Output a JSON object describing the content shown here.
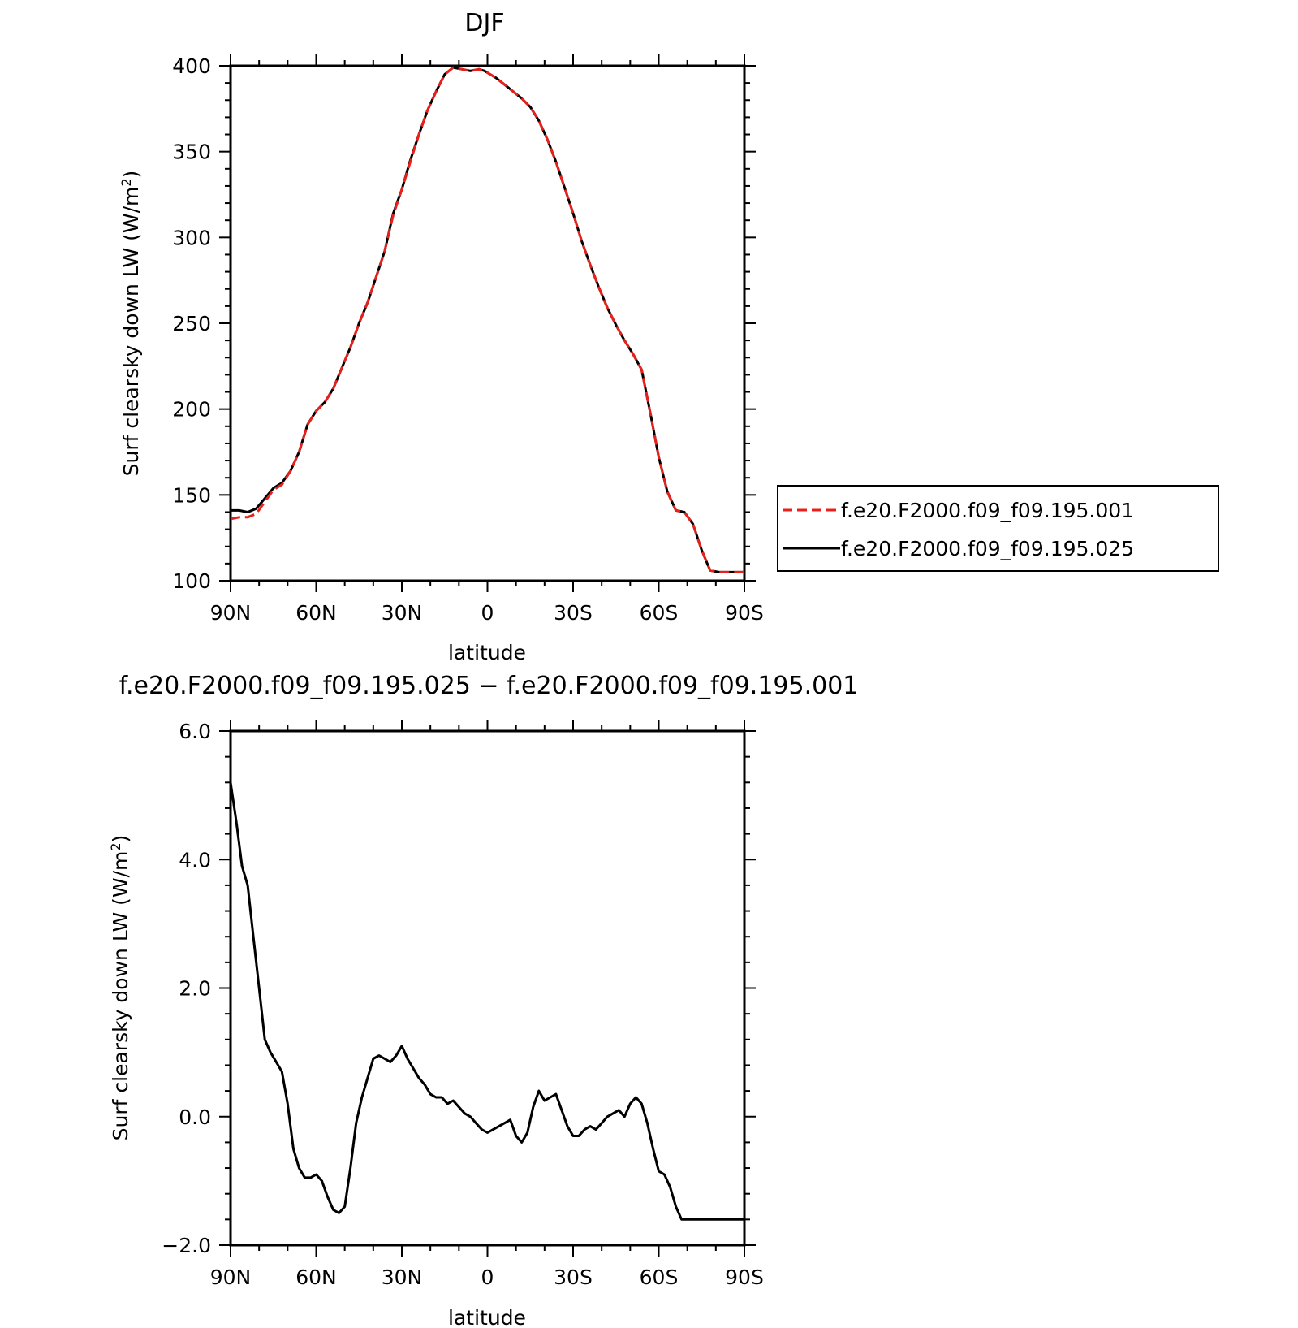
{
  "charts": [
    {
      "title": "DJF",
      "ylabel": "Surf clearsky down LW (W/m",
      "ylabel_sup": "2",
      "ylabel_close": ")",
      "xlabel": "latitude",
      "x_ticks": [
        "90N",
        "60N",
        "30N",
        "0",
        "30S",
        "60S",
        "90S"
      ],
      "y_ticks": [
        "400",
        "350",
        "300",
        "250",
        "200",
        "150",
        "100"
      ]
    },
    {
      "title": "f.e20.F2000.f09_f09.195.025 − f.e20.F2000.f09_f09.195.001",
      "ylabel": "Surf clearsky down LW (W/m",
      "ylabel_sup": "2",
      "ylabel_close": ")",
      "xlabel": "latitude",
      "x_ticks": [
        "90N",
        "60N",
        "30N",
        "0",
        "30S",
        "60S",
        "90S"
      ],
      "y_ticks": [
        "6.0",
        "4.0",
        "2.0",
        "0.0",
        "−2.0"
      ]
    }
  ],
  "legend": [
    {
      "label": "f.e20.F2000.f09_f09.195.001",
      "color": "#e8201c",
      "style": "dashed"
    },
    {
      "label": "f.e20.F2000.f09_f09.195.025",
      "color": "#000000",
      "style": "solid"
    }
  ],
  "chart_data": [
    {
      "type": "line",
      "title": "DJF",
      "xlabel": "latitude",
      "ylabel": "Surf clearsky down LW (W/m2)",
      "xlim": [
        90,
        -90
      ],
      "ylim": [
        100,
        400
      ],
      "legend_position": "right",
      "series": [
        {
          "name": "f.e20.F2000.f09_f09.195.025",
          "color": "#000000",
          "x": [
            90,
            87,
            84,
            81,
            78,
            75,
            72,
            69,
            66,
            63,
            60,
            57,
            54,
            51,
            48,
            45,
            42,
            39,
            36,
            33,
            30,
            27,
            24,
            21,
            18,
            15,
            12,
            9,
            6,
            3,
            1,
            0,
            -3,
            -6,
            -9,
            -12,
            -15,
            -18,
            -21,
            -24,
            -27,
            -30,
            -33,
            -36,
            -39,
            -42,
            -45,
            -48,
            -51,
            -54,
            -57,
            -60,
            -63,
            -66,
            -69,
            -72,
            -75,
            -78,
            -81,
            -84,
            -87,
            -90
          ],
          "y": [
            141,
            141,
            140,
            142,
            148,
            154,
            157,
            164,
            175,
            191,
            199,
            204,
            212,
            224,
            236,
            250,
            262,
            277,
            292,
            314,
            328,
            345,
            360,
            374,
            385,
            395,
            399,
            398,
            397,
            398,
            397,
            396,
            393,
            389,
            385,
            381,
            376,
            368,
            357,
            344,
            329,
            314,
            298,
            284,
            271,
            259,
            249,
            240,
            232,
            223,
            198,
            172,
            152,
            141,
            140,
            133,
            118,
            106,
            105,
            105,
            105,
            105
          ]
        },
        {
          "name": "f.e20.F2000.f09_f09.195.001",
          "color": "#e8201c",
          "x": [
            90,
            87,
            84,
            81,
            78,
            75,
            72,
            69,
            66,
            63,
            60,
            57,
            54,
            51,
            48,
            45,
            42,
            39,
            36,
            33,
            30,
            27,
            24,
            21,
            18,
            15,
            12,
            9,
            6,
            3,
            1,
            0,
            -3,
            -6,
            -9,
            -12,
            -15,
            -18,
            -21,
            -24,
            -27,
            -30,
            -33,
            -36,
            -39,
            -42,
            -45,
            -48,
            -51,
            -54,
            -57,
            -60,
            -63,
            -66,
            -69,
            -72,
            -75,
            -78,
            -81,
            -84,
            -87,
            -90
          ],
          "y": [
            136,
            137,
            137,
            139,
            146,
            153,
            156,
            164,
            175,
            191,
            199,
            204,
            212,
            224,
            236,
            250,
            262,
            277,
            292,
            313,
            328,
            344,
            360,
            374,
            385,
            395,
            399,
            398,
            397,
            398,
            397,
            396,
            393,
            389,
            385,
            381,
            376,
            368,
            357,
            344,
            329,
            314,
            298,
            284,
            271,
            259,
            249,
            240,
            232,
            223,
            198,
            172,
            152,
            141,
            140,
            133,
            118,
            106,
            105,
            105,
            105,
            105
          ]
        }
      ]
    },
    {
      "type": "line",
      "title": "f.e20.F2000.f09_f09.195.025 − f.e20.F2000.f09_f09.195.001",
      "xlabel": "latitude",
      "ylabel": "Surf clearsky down LW (W/m2)",
      "xlim": [
        90,
        -90
      ],
      "ylim": [
        -2,
        6
      ],
      "series": [
        {
          "color": "#000000",
          "x": [
            90,
            88,
            86,
            84,
            82,
            80,
            78,
            76,
            74,
            72,
            70,
            68,
            66,
            64,
            62,
            60,
            58,
            56,
            54,
            52,
            50,
            48,
            46,
            44,
            42,
            40,
            38,
            36,
            34,
            32,
            30,
            28,
            26,
            24,
            22,
            20,
            18,
            16,
            14,
            12,
            10,
            8,
            6,
            4,
            2,
            0,
            -2,
            -4,
            -6,
            -8,
            -10,
            -12,
            -14,
            -16,
            -18,
            -20,
            -22,
            -24,
            -26,
            -28,
            -30,
            -32,
            -34,
            -36,
            -38,
            -40,
            -42,
            -44,
            -46,
            -48,
            -50,
            -52,
            -54,
            -56,
            -58,
            -60,
            -62,
            -64,
            -66,
            -68,
            -70,
            -72,
            -74,
            -76,
            -78,
            -80,
            -82,
            -84,
            -86,
            -88,
            -90
          ],
          "y": [
            5.2,
            4.6,
            3.9,
            3.6,
            2.8,
            2.0,
            1.2,
            1.0,
            0.85,
            0.7,
            0.2,
            -0.5,
            -0.8,
            -0.95,
            -0.95,
            -0.9,
            -1.0,
            -1.25,
            -1.45,
            -1.5,
            -1.4,
            -0.8,
            -0.1,
            0.3,
            0.6,
            0.9,
            0.95,
            0.9,
            0.85,
            0.95,
            1.1,
            0.9,
            0.75,
            0.6,
            0.5,
            0.35,
            0.3,
            0.3,
            0.2,
            0.25,
            0.15,
            0.05,
            0.0,
            -0.1,
            -0.2,
            -0.25,
            -0.2,
            -0.15,
            -0.1,
            -0.05,
            -0.3,
            -0.4,
            -0.25,
            0.15,
            0.4,
            0.25,
            0.3,
            0.35,
            0.1,
            -0.15,
            -0.3,
            -0.3,
            -0.2,
            -0.15,
            -0.2,
            -0.1,
            0.0,
            0.05,
            0.1,
            0.0,
            0.2,
            0.3,
            0.2,
            -0.1,
            -0.5,
            -0.85,
            -0.9,
            -1.1,
            -1.4,
            -1.6,
            -1.6,
            -1.6,
            -1.6,
            -1.6,
            -1.6,
            -1.6,
            -1.6,
            -1.6,
            -1.6,
            -1.6,
            -1.6
          ]
        }
      ]
    }
  ]
}
